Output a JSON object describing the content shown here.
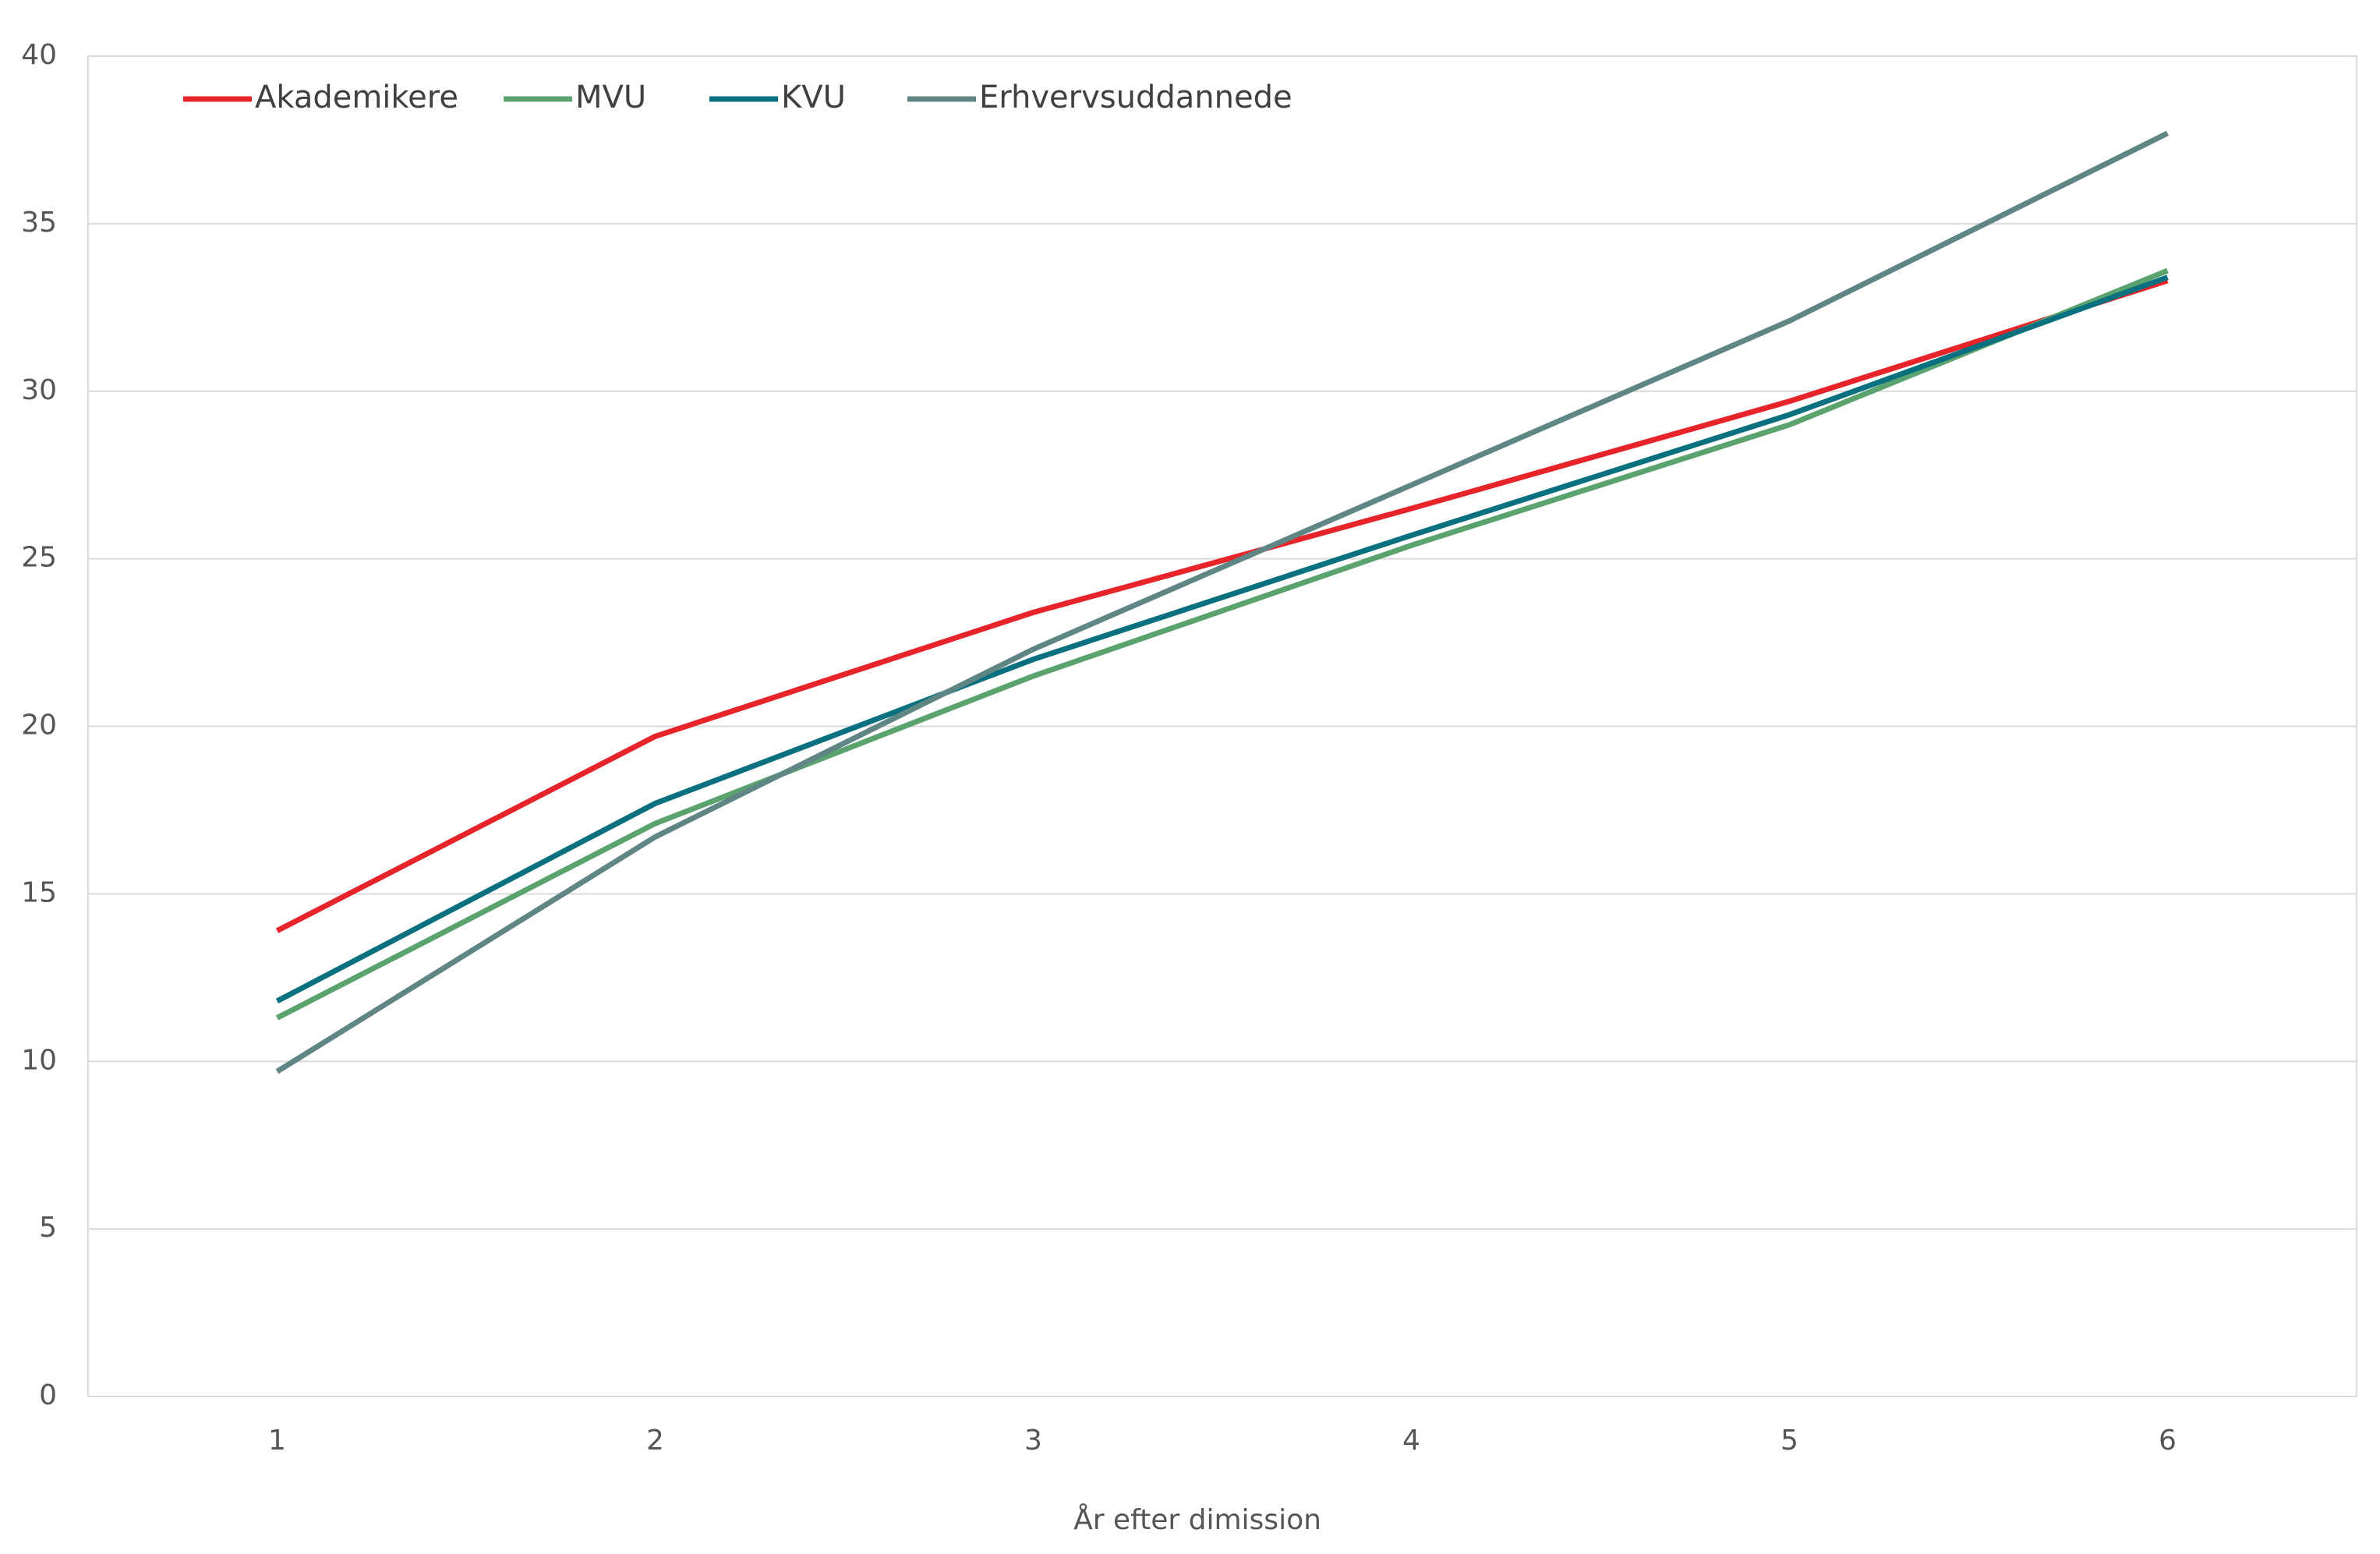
{
  "chart_data": {
    "type": "line",
    "x_label": "År efter dimission",
    "categories": [
      "1",
      "2",
      "3",
      "4",
      "5",
      "6"
    ],
    "series": [
      {
        "name": "Akademikere",
        "color": "#e8242b",
        "values": [
          13.9,
          19.7,
          23.4,
          26.5,
          29.7,
          33.3
        ]
      },
      {
        "name": "MVU",
        "color": "#5aa36f",
        "values": [
          11.3,
          17.1,
          21.5,
          25.4,
          29.0,
          33.6
        ]
      },
      {
        "name": "KVU",
        "color": "#08707f",
        "values": [
          11.8,
          17.7,
          22.0,
          25.7,
          29.3,
          33.4
        ]
      },
      {
        "name": "Erhvervsuddannede",
        "color": "#5f8584",
        "values": [
          9.7,
          16.7,
          22.3,
          27.2,
          32.1,
          37.7
        ]
      }
    ],
    "ylim": [
      0,
      40
    ],
    "yticks": [
      0,
      5,
      10,
      15,
      20,
      25,
      30,
      35,
      40
    ],
    "grid": true,
    "legend": "upper left"
  }
}
